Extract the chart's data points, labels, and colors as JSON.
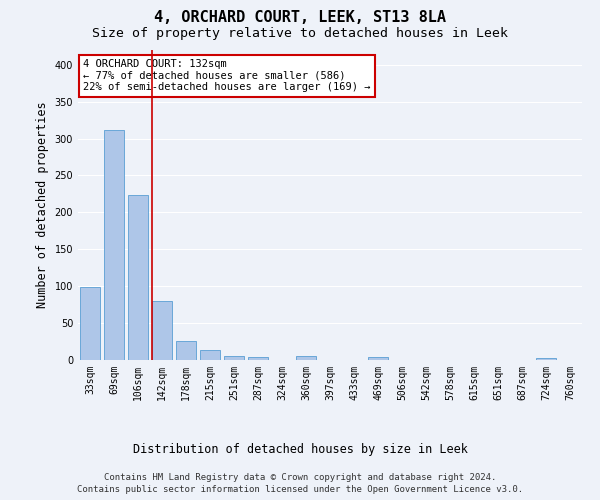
{
  "title": "4, ORCHARD COURT, LEEK, ST13 8LA",
  "subtitle": "Size of property relative to detached houses in Leek",
  "xlabel": "Distribution of detached houses by size in Leek",
  "ylabel": "Number of detached properties",
  "categories": [
    "33sqm",
    "69sqm",
    "106sqm",
    "142sqm",
    "178sqm",
    "215sqm",
    "251sqm",
    "287sqm",
    "324sqm",
    "360sqm",
    "397sqm",
    "433sqm",
    "469sqm",
    "506sqm",
    "542sqm",
    "578sqm",
    "615sqm",
    "651sqm",
    "687sqm",
    "724sqm",
    "760sqm"
  ],
  "values": [
    99,
    312,
    224,
    80,
    26,
    13,
    5,
    4,
    0,
    5,
    0,
    0,
    4,
    0,
    0,
    0,
    0,
    0,
    0,
    3,
    0
  ],
  "bar_color": "#aec6e8",
  "bar_edge_color": "#5a9fd4",
  "vline_color": "#cc0000",
  "annotation_text": "4 ORCHARD COURT: 132sqm\n← 77% of detached houses are smaller (586)\n22% of semi-detached houses are larger (169) →",
  "annotation_box_color": "#ffffff",
  "annotation_box_edge": "#cc0000",
  "ylim": [
    0,
    420
  ],
  "yticks": [
    0,
    50,
    100,
    150,
    200,
    250,
    300,
    350,
    400
  ],
  "footer_line1": "Contains HM Land Registry data © Crown copyright and database right 2024.",
  "footer_line2": "Contains public sector information licensed under the Open Government Licence v3.0.",
  "background_color": "#eef2f9",
  "grid_color": "#ffffff",
  "title_fontsize": 11,
  "subtitle_fontsize": 9.5,
  "axis_label_fontsize": 8.5,
  "tick_fontsize": 7,
  "annotation_fontsize": 7.5,
  "footer_fontsize": 6.5
}
